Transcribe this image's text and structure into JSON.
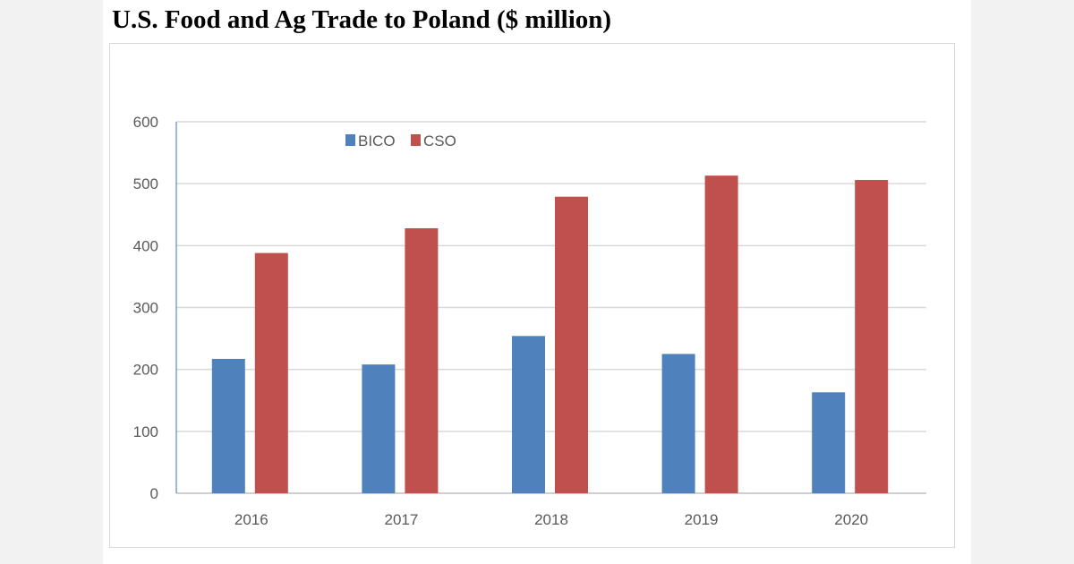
{
  "chart_data": {
    "type": "bar",
    "title": "U.S. Food and Ag Trade to Poland ($ million)",
    "categories": [
      "2016",
      "2017",
      "2018",
      "2019",
      "2020"
    ],
    "series": [
      {
        "name": "BICO",
        "color": "#4f81bd",
        "values": [
          217,
          208,
          254,
          225,
          163
        ]
      },
      {
        "name": "CSO",
        "color": "#c0504d",
        "values": [
          388,
          428,
          479,
          513,
          506
        ]
      }
    ],
    "ylim": [
      0,
      600
    ],
    "yticks": [
      "0",
      "100",
      "200",
      "300",
      "400",
      "500",
      "600"
    ],
    "grid": true,
    "legend": "top-center"
  }
}
